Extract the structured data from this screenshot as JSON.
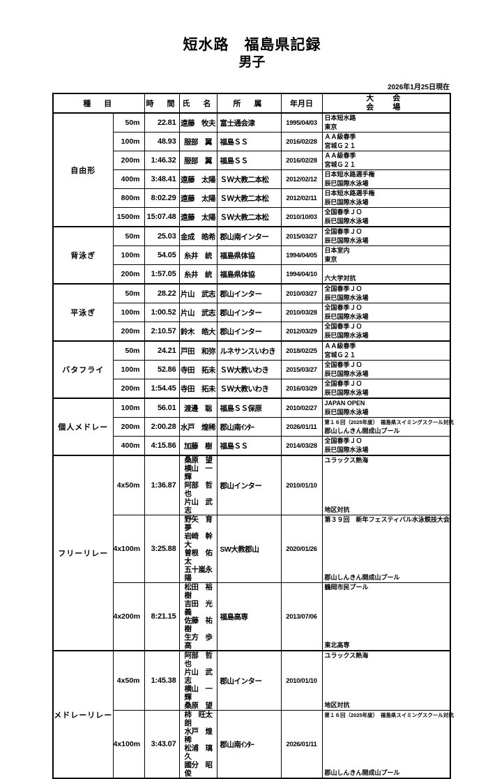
{
  "title": {
    "line1": "短水路　福島県記録",
    "line2": "男子"
  },
  "as_of_date": "2026年1月25日現在",
  "table": {
    "headers": {
      "event": "種　目",
      "time": "時　間",
      "name": "氏　名",
      "affiliation": "所　属",
      "date": "年月日",
      "meet_line1": "大　会",
      "meet_line2": "会　場"
    },
    "sections": [
      {
        "category": "自由形",
        "rows": [
          {
            "distance": "50m",
            "time": "22.81",
            "names": [
              "遠藤　牧夫"
            ],
            "affiliation": "富士通会津",
            "date": "1995/04/03",
            "meet": "日本短水路",
            "venue": "東京"
          },
          {
            "distance": "100m",
            "time": "48.93",
            "names": [
              "服部　翼"
            ],
            "affiliation": "福島ＳＳ",
            "date": "2016/02/28",
            "meet": "ＡＡ級春季",
            "venue": "宮城Ｇ２１"
          },
          {
            "distance": "200m",
            "time": "1:46.32",
            "names": [
              "服部　翼"
            ],
            "affiliation": "福島ＳＳ",
            "date": "2016/02/28",
            "meet": "ＡＡ級春季",
            "venue": "宮城Ｇ２１"
          },
          {
            "distance": "400m",
            "time": "3:48.41",
            "names": [
              "遠藤　太陽"
            ],
            "affiliation": "ＳＷ大教二本松",
            "date": "2012/02/12",
            "meet": "日本短水路選手権",
            "venue": "辰巳国際水泳場"
          },
          {
            "distance": "800m",
            "time": "8:02.29",
            "names": [
              "遠藤　太陽"
            ],
            "affiliation": "ＳＷ大教二本松",
            "date": "2012/02/11",
            "meet": "日本短水路選手権",
            "venue": "辰巳国際水泳場"
          },
          {
            "distance": "1500m",
            "time": "15:07.48",
            "names": [
              "遠藤　太陽"
            ],
            "affiliation": "ＳＷ大教二本松",
            "date": "2010/10/03",
            "meet": "全国春季ＪＯ",
            "venue": "辰巳国際水泳場"
          }
        ]
      },
      {
        "category": "背泳ぎ",
        "rows": [
          {
            "distance": "50m",
            "time": "25.03",
            "names": [
              "金成　皓希"
            ],
            "affiliation": "郡山南インター",
            "date": "2015/03/27",
            "meet": "全国春季ＪＯ",
            "venue": "辰巳国際水泳場"
          },
          {
            "distance": "100m",
            "time": "54.05",
            "names": [
              "糸井　統"
            ],
            "affiliation": "福島県体協",
            "date": "1994/04/05",
            "meet": "日本室内",
            "venue": "東京"
          },
          {
            "distance": "200m",
            "time": "1:57.05",
            "names": [
              "糸井　統"
            ],
            "affiliation": "福島県体協",
            "date": "1994/04/10",
            "meet": "",
            "venue": "六大学対抗"
          }
        ]
      },
      {
        "category": "平泳ぎ",
        "rows": [
          {
            "distance": "50m",
            "time": "28.22",
            "names": [
              "片山　武志"
            ],
            "affiliation": "郡山インター",
            "date": "2010/03/27",
            "meet": "全国春季ＪＯ",
            "venue": "辰巳国際水泳場"
          },
          {
            "distance": "100m",
            "time": "1:00.52",
            "names": [
              "片山　武志"
            ],
            "affiliation": "郡山インター",
            "date": "2010/03/28",
            "meet": "全国春季ＪＯ",
            "venue": "辰巳国際水泳場"
          },
          {
            "distance": "200m",
            "time": "2:10.57",
            "names": [
              "鈴木　皓大"
            ],
            "affiliation": "郡山インター",
            "date": "2012/03/29",
            "meet": "全国春季ＪＯ",
            "venue": "辰巳国際水泳場"
          }
        ]
      },
      {
        "category": "バタフライ",
        "rows": [
          {
            "distance": "50m",
            "time": "24.21",
            "names": [
              "戸田　和弥"
            ],
            "affiliation": "ルネサンスいわき",
            "date": "2018/02/25",
            "meet": "ＡＡ級春季",
            "venue": "宮城Ｇ２１"
          },
          {
            "distance": "100m",
            "time": "52.86",
            "names": [
              "寺田　拓未"
            ],
            "affiliation": "ＳＷ大教いわき",
            "date": "2015/03/27",
            "meet": "全国春季ＪＯ",
            "venue": "辰巳国際水泳場"
          },
          {
            "distance": "200m",
            "time": "1:54.45",
            "names": [
              "寺田　拓未"
            ],
            "affiliation": "ＳＷ大教いわき",
            "date": "2016/03/29",
            "meet": "全国春季ＪＯ",
            "venue": "辰巳国際水泳場"
          }
        ]
      },
      {
        "category": "個人メドレー",
        "rows": [
          {
            "distance": "100m",
            "time": "56.01",
            "names": [
              "渡邊　聡"
            ],
            "affiliation": "福島ＳＳ保原",
            "date": "2010/02/27",
            "meet": "JAPAN OPEN",
            "venue": "辰巳国際水泳場"
          },
          {
            "distance": "200m",
            "time": "2:00.28",
            "names": [
              "水戸　煌稀"
            ],
            "affiliation": "郡山南ｲﾝﾀｰ",
            "date": "2026/01/11",
            "meet": "第１６回（2025年度）　福島県スイミングスクール対抗",
            "venue": "郡山しんきん開成山プール",
            "meet_small": true
          },
          {
            "distance": "400m",
            "time": "4:15.86",
            "names": [
              "加藤　樹"
            ],
            "affiliation": "福島ＳＳ",
            "date": "2014/03/28",
            "meet": "全国春季ＪＯ",
            "venue": "辰巳国際水泳場"
          }
        ]
      },
      {
        "category": "フリーリレー",
        "rows": [
          {
            "distance": "4x50m",
            "time": "1:36.87",
            "names": [
              "桑原　望",
              "横山　一輝",
              "阿部　哲也",
              "片山　武志"
            ],
            "affiliation": "郡山インター",
            "date": "2010/01/10",
            "meet": "ユラックス熱海",
            "venue": "地区対抗"
          },
          {
            "distance": "4x100m",
            "time": "3:25.88",
            "names": [
              "野矢　育夢",
              "岩崎　幹大",
              "曽根　佑太",
              "五十嵐永陽"
            ],
            "affiliation": "SW大教郡山",
            "date": "2020/01/26",
            "meet": "第３９回　新年フェスティバル水泳競技大会",
            "venue": "郡山しんきん開成山プール"
          },
          {
            "distance": "4x200m",
            "time": "8:21.15",
            "names": [
              "松田　裕樹",
              "吉田　光義",
              "佐藤　祐樹",
              "生方　歩高"
            ],
            "affiliation": "福島高専",
            "date": "2013/07/06",
            "meet": "鶴岡市民プール",
            "venue": "東北高専"
          }
        ]
      },
      {
        "category": "メドレーリレー",
        "rows": [
          {
            "distance": "4x50m",
            "time": "1:45.38",
            "names": [
              "阿部　哲也",
              "片山　武志",
              "横山　一輝",
              "桑原　望"
            ],
            "affiliation": "郡山インター",
            "date": "2010/01/10",
            "meet": "ユラックス熱海",
            "venue": "地区対抗"
          },
          {
            "distance": "4x100m",
            "time": "3:43.07",
            "names": [
              "柿　旺太朗",
              "水戸　煌稀",
              "松浦　璃久",
              "國分　昭俊"
            ],
            "affiliation": "郡山南ｲﾝﾀｰ",
            "date": "2026/01/11",
            "meet": "第１６回（2025年度）　福島県スイミングスクール対抗",
            "venue": "郡山しんきん開成山プール",
            "meet_small": true
          }
        ]
      }
    ]
  }
}
